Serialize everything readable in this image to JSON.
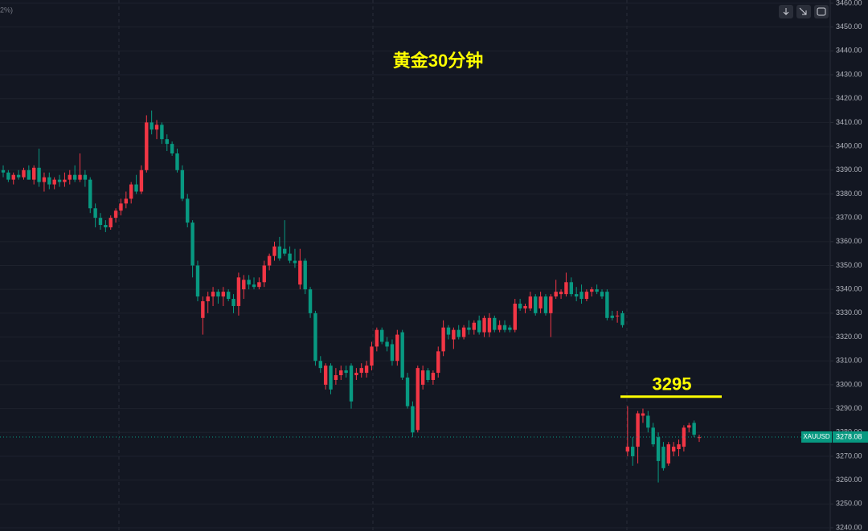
{
  "chart_data": {
    "type": "candlestick",
    "title": "黄金30分钟",
    "corner_text": "2%)",
    "level_annotation": 3295,
    "last_price": 3278.08,
    "up_color": "#f23645",
    "down_color": "#089981",
    "grid": true,
    "ylim": [
      3240,
      3460
    ],
    "yticks": [
      {
        "value": 3240,
        "label": "3240.00"
      },
      {
        "value": 3250,
        "label": "3250.00"
      },
      {
        "value": 3260,
        "label": "3260.00"
      },
      {
        "value": 3270,
        "label": "3270.00"
      },
      {
        "value": 3280,
        "label": "3280.00"
      },
      {
        "value": 3290,
        "label": "3290.00"
      },
      {
        "value": 3300,
        "label": "3300.00"
      },
      {
        "value": 3310,
        "label": "3310.00"
      },
      {
        "value": 3320,
        "label": "3320.00"
      },
      {
        "value": 3330,
        "label": "3330.00"
      },
      {
        "value": 3340,
        "label": "3340.00"
      },
      {
        "value": 3350,
        "label": "3350.00"
      },
      {
        "value": 3360,
        "label": "3360.00"
      },
      {
        "value": 3370,
        "label": "3370.00"
      },
      {
        "value": 3380,
        "label": "3380.00"
      },
      {
        "value": 3390,
        "label": "3390.00"
      },
      {
        "value": 3400,
        "label": "3400.00"
      },
      {
        "value": 3410,
        "label": "3410.00"
      },
      {
        "value": 3420,
        "label": "3420.00"
      },
      {
        "value": 3430,
        "label": "3430.00"
      },
      {
        "value": 3440,
        "label": "3440.00"
      },
      {
        "value": 3450,
        "label": "3450.00"
      },
      {
        "value": 3460,
        "label": "3460.00"
      }
    ],
    "series": [
      {
        "name": "XAUUSD",
        "open": [
          3390,
          3389,
          3386,
          3388,
          3387,
          3390,
          3386,
          3391,
          3385,
          3387,
          3384,
          3386,
          3385,
          3386,
          3388,
          3386,
          3388,
          3386,
          3374,
          3370,
          3367,
          3366,
          3370,
          3373,
          3376,
          3378,
          3384,
          3381,
          3390,
          3410,
          3407,
          3409,
          3403,
          3401,
          3397,
          3390,
          3378,
          3368,
          3350,
          3328,
          3335,
          3337,
          3339,
          3337,
          3339,
          3336,
          3333,
          3340,
          3344,
          3342,
          3341,
          3343,
          3350,
          3354,
          3358,
          3357,
          3355,
          3352,
          3342,
          3352,
          3340,
          3330,
          3310,
          3300,
          3308,
          3302,
          3304,
          3306,
          3308,
          3304,
          3305,
          3305,
          3308,
          3316,
          3323,
          3318,
          3317,
          3310,
          3322,
          3303,
          3291,
          3281,
          3300,
          3306,
          3302,
          3305,
          3314,
          3324,
          3319,
          3323,
          3320,
          3324,
          3323,
          3327,
          3322,
          3322,
          3328,
          3323,
          3325,
          3324,
          3323,
          3334,
          3332,
          3332,
          3337,
          3332,
          3337,
          3330,
          3337,
          3338,
          3338,
          3343,
          3338,
          3339,
          3336,
          3339,
          3340,
          3339,
          3339,
          3329,
          3329,
          3330,
          3272,
          3274,
          3274,
          3287,
          3287,
          3282,
          3278,
          3274,
          3267,
          3272,
          3273,
          3274,
          3282,
          3284,
          3278
        ],
        "high": [
          3392,
          3390,
          3389,
          3390,
          3391,
          3392,
          3392,
          3399,
          3389,
          3389,
          3387,
          3388,
          3389,
          3390,
          3392,
          3397,
          3390,
          3387,
          3376,
          3372,
          3369,
          3371,
          3374,
          3378,
          3381,
          3385,
          3388,
          3392,
          3413,
          3415,
          3411,
          3410,
          3405,
          3402,
          3399,
          3392,
          3380,
          3369,
          3352,
          3337,
          3339,
          3341,
          3340,
          3341,
          3340,
          3338,
          3347,
          3346,
          3346,
          3345,
          3345,
          3352,
          3355,
          3360,
          3362,
          3369,
          3358,
          3357,
          3357,
          3353,
          3341,
          3331,
          3312,
          3309,
          3309,
          3307,
          3308,
          3308,
          3309,
          3307,
          3309,
          3310,
          3318,
          3324,
          3324,
          3320,
          3319,
          3323,
          3323,
          3305,
          3293,
          3308,
          3308,
          3307,
          3306,
          3316,
          3327,
          3325,
          3324,
          3325,
          3325,
          3327,
          3327,
          3329,
          3329,
          3330,
          3329,
          3327,
          3327,
          3325,
          3336,
          3336,
          3334,
          3339,
          3338,
          3339,
          3338,
          3338,
          3344,
          3340,
          3347,
          3345,
          3341,
          3342,
          3340,
          3341,
          3342,
          3340,
          3340,
          3331,
          3331,
          3331,
          3291,
          3278,
          3289,
          3290,
          3289,
          3284,
          3280,
          3276,
          3276,
          3276,
          3277,
          3283,
          3284,
          3285,
          3279
        ],
        "low": [
          3387,
          3385,
          3384,
          3386,
          3386,
          3386,
          3384,
          3383,
          3381,
          3382,
          3382,
          3383,
          3383,
          3384,
          3385,
          3385,
          3383,
          3372,
          3366,
          3365,
          3364,
          3365,
          3368,
          3371,
          3374,
          3376,
          3380,
          3380,
          3389,
          3405,
          3403,
          3401,
          3398,
          3396,
          3389,
          3377,
          3366,
          3345,
          3335,
          3321,
          3330,
          3333,
          3334,
          3333,
          3335,
          3330,
          3329,
          3336,
          3340,
          3340,
          3340,
          3341,
          3348,
          3352,
          3352,
          3354,
          3351,
          3349,
          3340,
          3338,
          3328,
          3308,
          3305,
          3298,
          3296,
          3300,
          3302,
          3303,
          3290,
          3302,
          3303,
          3303,
          3306,
          3314,
          3317,
          3314,
          3308,
          3308,
          3302,
          3290,
          3278,
          3280,
          3298,
          3301,
          3300,
          3303,
          3312,
          3319,
          3315,
          3319,
          3319,
          3321,
          3321,
          3321,
          3320,
          3320,
          3322,
          3322,
          3322,
          3322,
          3322,
          3331,
          3330,
          3331,
          3329,
          3330,
          3329,
          3320,
          3336,
          3336,
          3337,
          3337,
          3335,
          3334,
          3335,
          3337,
          3338,
          3336,
          3327,
          3327,
          3326,
          3324,
          3270,
          3266,
          3267,
          3284,
          3280,
          3274,
          3259,
          3264,
          3266,
          3270,
          3270,
          3272,
          3280,
          3278,
          3276
        ],
        "close": [
          3389,
          3386,
          3388,
          3387,
          3390,
          3386,
          3391,
          3385,
          3387,
          3384,
          3386,
          3385,
          3386,
          3388,
          3386,
          3388,
          3386,
          3374,
          3370,
          3367,
          3366,
          3370,
          3373,
          3376,
          3378,
          3384,
          3381,
          3390,
          3410,
          3407,
          3409,
          3403,
          3401,
          3397,
          3390,
          3378,
          3368,
          3350,
          3337,
          3335,
          3337,
          3339,
          3337,
          3339,
          3336,
          3333,
          3345,
          3344,
          3342,
          3341,
          3343,
          3350,
          3354,
          3358,
          3353,
          3355,
          3352,
          3351,
          3352,
          3340,
          3330,
          3310,
          3307,
          3308,
          3298,
          3304,
          3306,
          3305,
          3293,
          3305,
          3307,
          3308,
          3316,
          3323,
          3318,
          3316,
          3310,
          3321,
          3303,
          3291,
          3280,
          3307,
          3306,
          3302,
          3305,
          3314,
          3324,
          3321,
          3323,
          3320,
          3324,
          3323,
          3326,
          3322,
          3328,
          3328,
          3323,
          3325,
          3323,
          3323,
          3334,
          3332,
          3333,
          3337,
          3330,
          3337,
          3330,
          3337,
          3339,
          3339,
          3343,
          3338,
          3337,
          3336,
          3339,
          3340,
          3339,
          3337,
          3328,
          3328,
          3329,
          3325,
          3274,
          3270,
          3288,
          3288,
          3282,
          3275,
          3268,
          3265,
          3275,
          3274,
          3275,
          3282,
          3283,
          3279,
          3278
        ]
      }
    ]
  }
}
